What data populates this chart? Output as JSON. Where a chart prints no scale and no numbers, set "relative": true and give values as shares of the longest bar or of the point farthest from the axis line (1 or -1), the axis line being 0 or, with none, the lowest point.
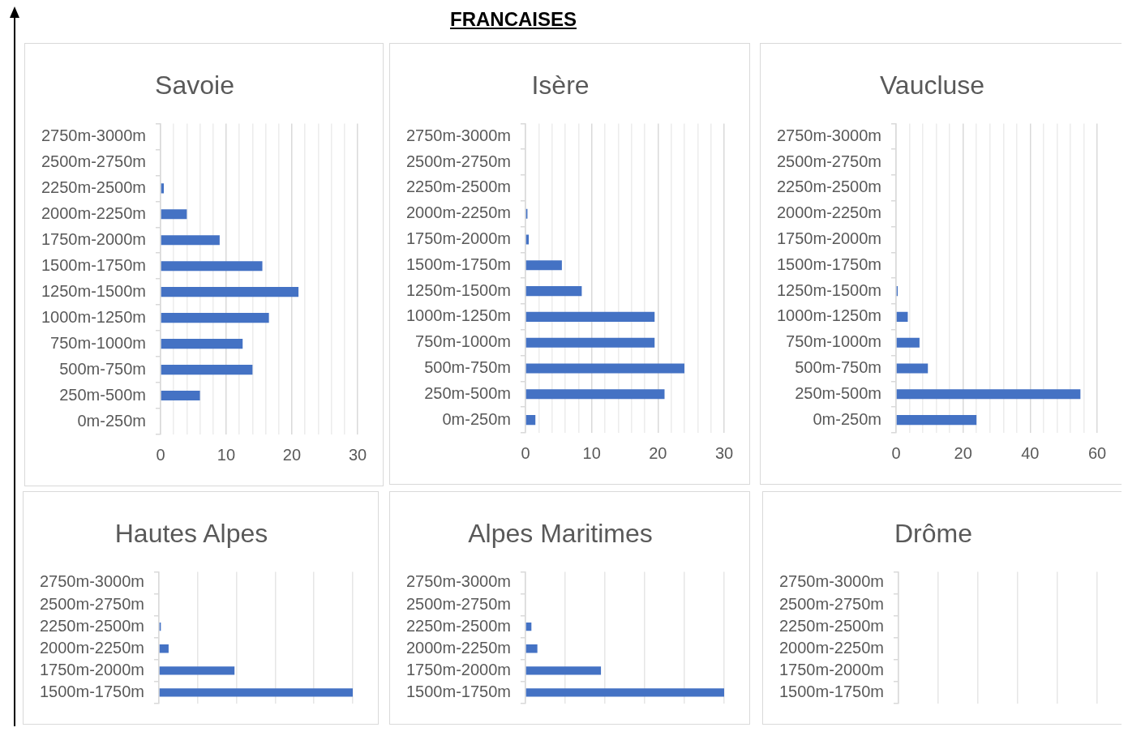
{
  "chart_data": [
    {
      "type": "other",
      "title": "FRANCAISES"
    },
    {
      "type": "bar",
      "orientation": "horizontal",
      "title": "Savoie",
      "color": "#4472c4",
      "grid": "x",
      "categories": [
        "2750m-3000m",
        "2500m-2750m",
        "2250m-2500m",
        "2000m-2250m",
        "1750m-2000m",
        "1500m-1750m",
        "1250m-1500m",
        "1000m-1250m",
        "750m-1000m",
        "500m-750m",
        "250m-500m",
        "0m-250m"
      ],
      "values": [
        0,
        0,
        0.5,
        4,
        9,
        15.5,
        21,
        16.5,
        12.5,
        14,
        6,
        0
      ],
      "xlim": [
        0,
        30
      ],
      "xticks": [
        0,
        {
          "value": 2,
          "label": null
        },
        {
          "value": 4,
          "label": null
        },
        {
          "value": 6,
          "label": null
        },
        {
          "value": 8,
          "label": null
        },
        10,
        {
          "value": 12,
          "label": null
        },
        {
          "value": 14,
          "label": null
        },
        {
          "value": 16,
          "label": null
        },
        {
          "value": 18,
          "label": null
        },
        20,
        {
          "value": 22,
          "label": null
        },
        {
          "value": 24,
          "label": null
        },
        {
          "value": 26,
          "label": null
        },
        {
          "value": 28,
          "label": null
        },
        30
      ]
    },
    {
      "type": "bar",
      "orientation": "horizontal",
      "title": "Isère",
      "color": "#4472c4",
      "grid": "x",
      "categories": [
        "2750m-3000m",
        "2500m-2750m",
        "2250m-2500m",
        "2000m-2250m",
        "1750m-2000m",
        "1500m-1750m",
        "1250m-1500m",
        "1000m-1250m",
        "750m-1000m",
        "500m-750m",
        "250m-500m",
        "0m-250m"
      ],
      "values": [
        0,
        0,
        0,
        0.3,
        0.5,
        5.5,
        8.5,
        19.5,
        19.5,
        24,
        21,
        1.5
      ],
      "xlim": [
        0,
        30
      ],
      "xticks": [
        0,
        {
          "value": 2,
          "label": null
        },
        {
          "value": 4,
          "label": null
        },
        {
          "value": 6,
          "label": null
        },
        {
          "value": 8,
          "label": null
        },
        10,
        {
          "value": 12,
          "label": null
        },
        {
          "value": 14,
          "label": null
        },
        {
          "value": 16,
          "label": null
        },
        {
          "value": 18,
          "label": null
        },
        20,
        {
          "value": 22,
          "label": null
        },
        {
          "value": 24,
          "label": null
        },
        {
          "value": 26,
          "label": null
        },
        {
          "value": 28,
          "label": null
        },
        30
      ]
    },
    {
      "type": "bar",
      "orientation": "horizontal",
      "title": "Vaucluse",
      "color": "#4472c4",
      "grid": "x",
      "categories": [
        "2750m-3000m",
        "2500m-2750m",
        "2250m-2500m",
        "2000m-2250m",
        "1750m-2000m",
        "1500m-1750m",
        "1250m-1500m",
        "1000m-1250m",
        "750m-1000m",
        "500m-750m",
        "250m-500m",
        "0m-250m"
      ],
      "values": [
        0,
        0,
        0,
        0,
        0,
        0,
        0.5,
        3.5,
        7,
        9.5,
        55,
        24
      ],
      "xlim": [
        0,
        60
      ],
      "xticks": [
        0,
        {
          "value": 4,
          "label": null
        },
        {
          "value": 8,
          "label": null
        },
        {
          "value": 12,
          "label": null
        },
        {
          "value": 16,
          "label": null
        },
        20,
        {
          "value": 24,
          "label": null
        },
        {
          "value": 28,
          "label": null
        },
        {
          "value": 32,
          "label": null
        },
        {
          "value": 36,
          "label": null
        },
        40,
        {
          "value": 44,
          "label": null
        },
        {
          "value": 48,
          "label": null
        },
        {
          "value": 52,
          "label": null
        },
        {
          "value": 56,
          "label": null
        },
        60
      ]
    },
    {
      "type": "bar",
      "orientation": "horizontal",
      "title": "Hautes Alpes",
      "color": "#4472c4",
      "grid": "x",
      "relative": true,
      "categories": [
        "2750m-3000m",
        "2500m-2750m",
        "2250m-2500m",
        "2000m-2250m",
        "1750m-2000m",
        "1500m-1750m"
      ],
      "values": [
        0,
        0,
        0.01,
        0.05,
        0.39,
        1
      ]
    },
    {
      "type": "bar",
      "orientation": "horizontal",
      "title": "Alpes Maritimes",
      "color": "#4472c4",
      "grid": "x",
      "relative": true,
      "categories": [
        "2750m-3000m",
        "2500m-2750m",
        "2250m-2500m",
        "2000m-2250m",
        "1750m-2000m",
        "1500m-1750m"
      ],
      "values": [
        0,
        0,
        0.03,
        0.06,
        0.38,
        1
      ]
    },
    {
      "type": "other",
      "title": "Drôme",
      "categories": [
        "2750m-3000m",
        "2500m-2750m",
        "2250m-2500m",
        "2000m-2250m",
        "1750m-2000m",
        "1500m-1750m"
      ]
    }
  ]
}
